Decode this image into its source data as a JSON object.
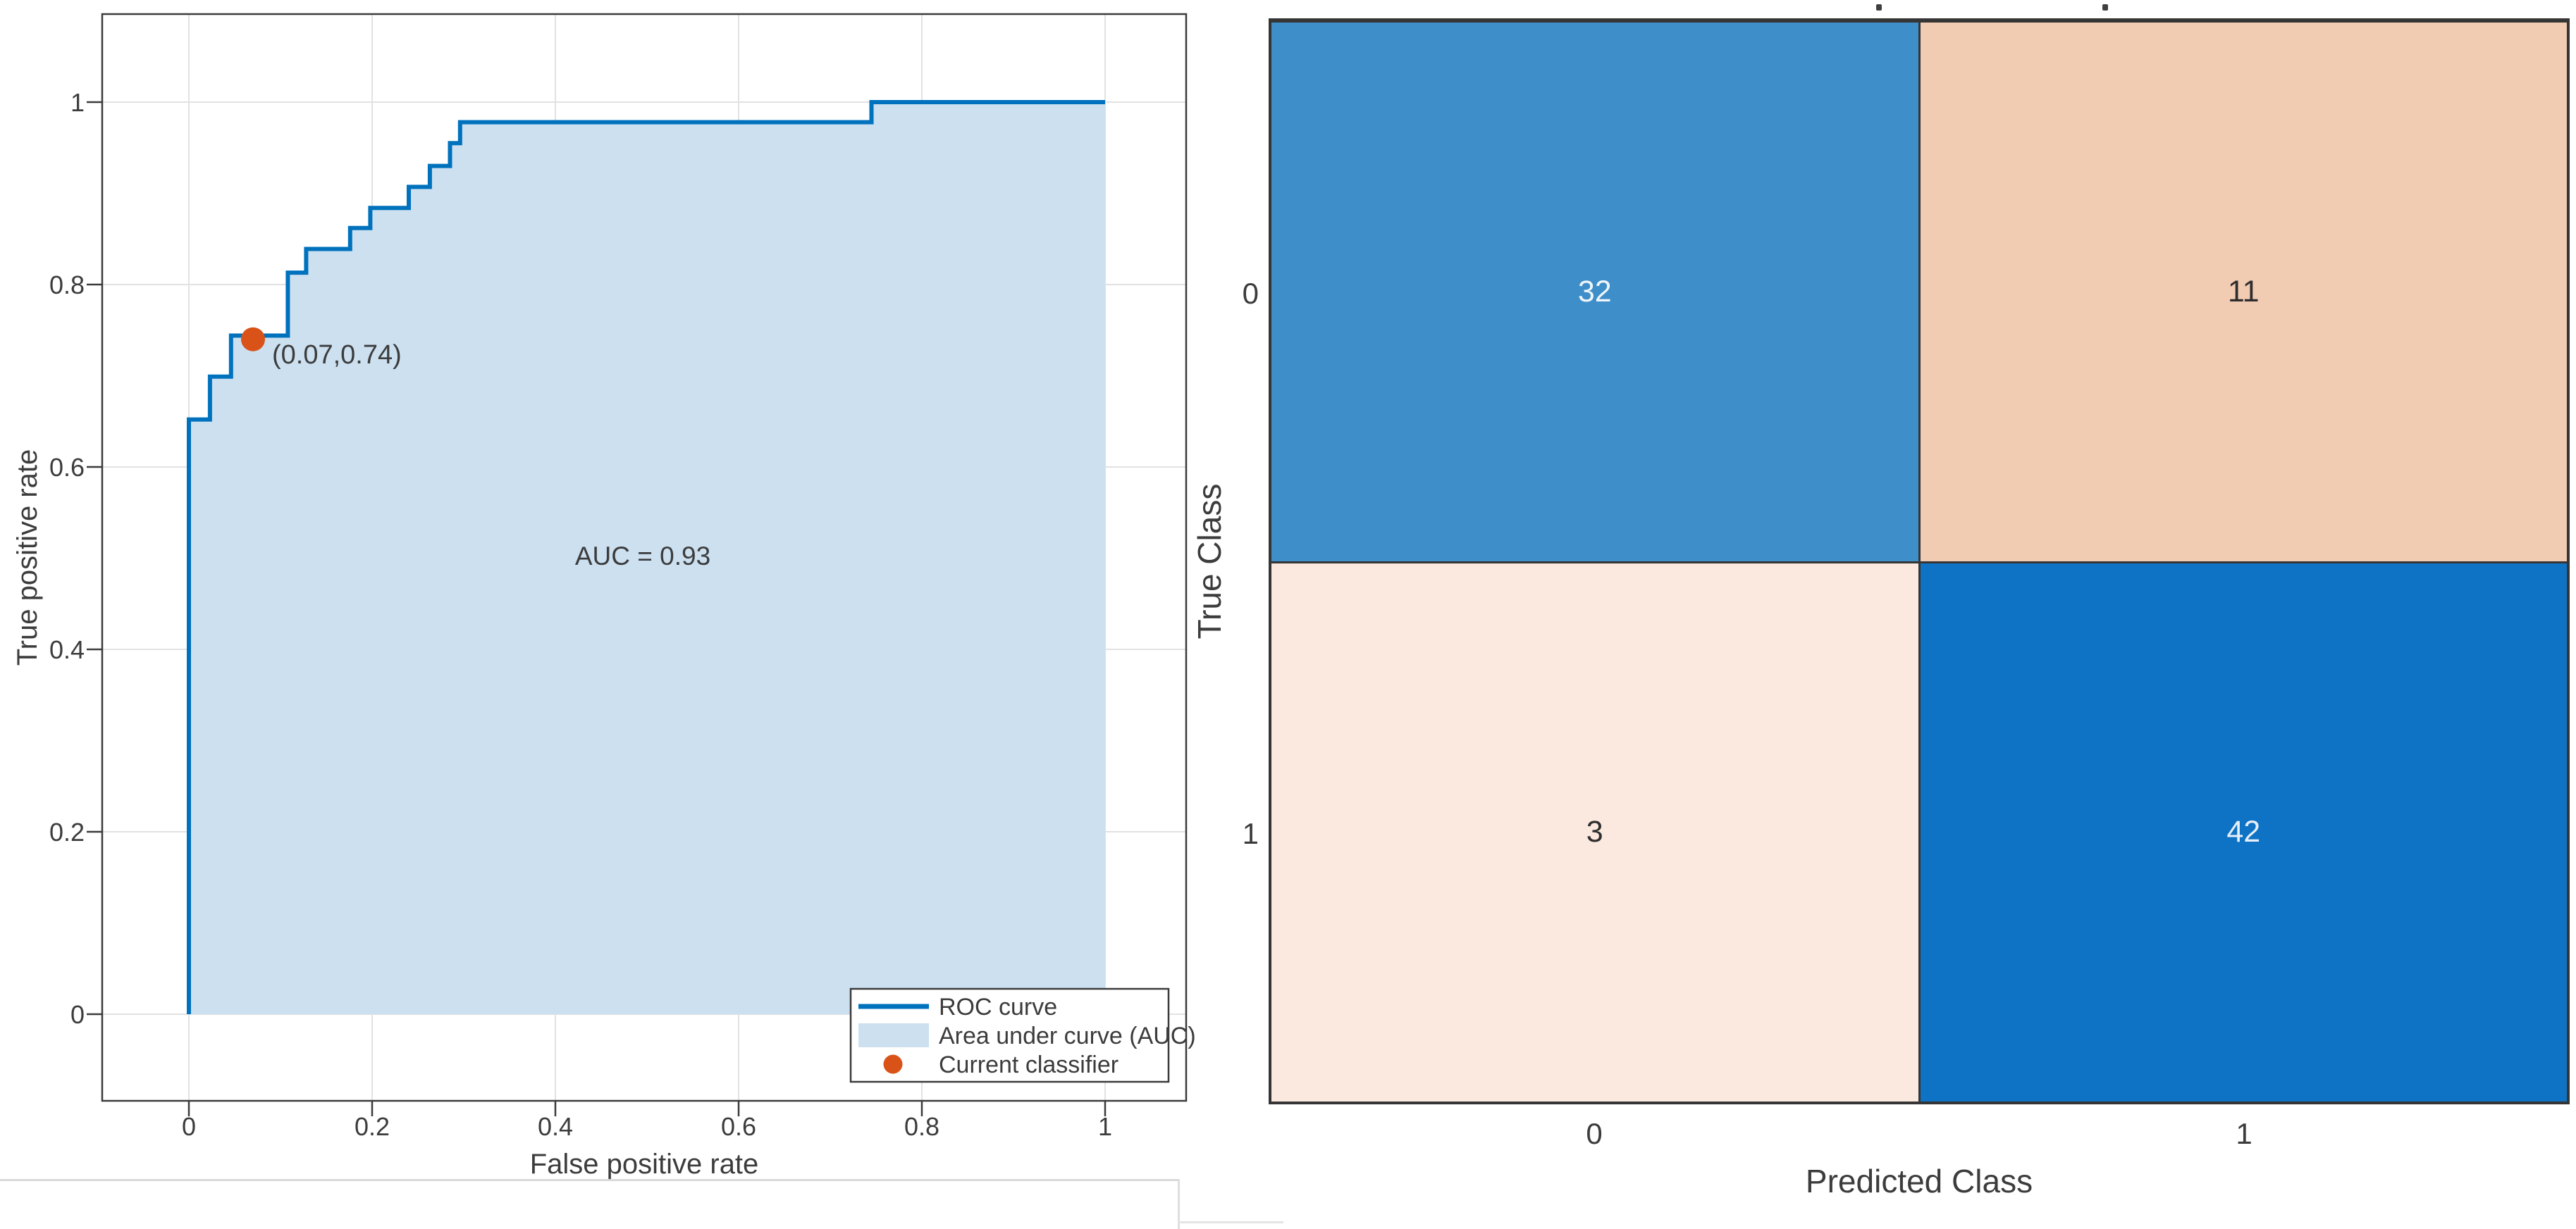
{
  "figure": {
    "description": "ROC curve plot and confusion matrix chart side by side"
  },
  "chart_data": [
    {
      "type": "area",
      "title": "",
      "xlabel": "False positive rate",
      "ylabel": "True positive rate",
      "xlim": [
        -0.095,
        1.088
      ],
      "ylim": [
        -0.096,
        1.097
      ],
      "xticks": [
        0,
        0.2,
        0.4,
        0.6,
        0.8,
        1
      ],
      "yticks": [
        0,
        0.2,
        0.4,
        0.6,
        0.8,
        1
      ],
      "grid": true,
      "series": [
        {
          "name": "ROC curve",
          "points": [
            [
              0,
              0
            ],
            [
              0,
              0.652
            ],
            [
              0.023,
              0.652
            ],
            [
              0.023,
              0.699
            ],
            [
              0.046,
              0.699
            ],
            [
              0.046,
              0.744
            ],
            [
              0.108,
              0.744
            ],
            [
              0.108,
              0.813
            ],
            [
              0.128,
              0.813
            ],
            [
              0.128,
              0.839
            ],
            [
              0.176,
              0.839
            ],
            [
              0.176,
              0.862
            ],
            [
              0.198,
              0.862
            ],
            [
              0.198,
              0.884
            ],
            [
              0.24,
              0.884
            ],
            [
              0.24,
              0.907
            ],
            [
              0.263,
              0.907
            ],
            [
              0.263,
              0.93
            ],
            [
              0.285,
              0.93
            ],
            [
              0.285,
              0.955
            ],
            [
              0.296,
              0.955
            ],
            [
              0.296,
              0.978
            ],
            [
              0.745,
              0.978
            ],
            [
              0.745,
              1
            ],
            [
              1,
              1
            ]
          ]
        }
      ],
      "auc": 0.93,
      "auc_label": "AUC = 0.93",
      "classifier_point": {
        "x": 0.07,
        "y": 0.74,
        "label": "(0.07,0.74)"
      },
      "legend": {
        "position": "southeast",
        "entries": [
          {
            "label": "ROC curve",
            "swatch": "line",
            "color": "#0072bd"
          },
          {
            "label": "Area under curve (AUC)",
            "swatch": "patch",
            "color": "#cce0f0"
          },
          {
            "label": "Current classifier",
            "swatch": "dot",
            "color": "#d95319"
          }
        ]
      },
      "colors": {
        "line": "#0072bd",
        "fill": "#cce0f0",
        "marker": "#d95319",
        "grid": "#e2e2e2",
        "axis": "#3b3b3b"
      }
    },
    {
      "type": "heatmap",
      "title": "",
      "xlabel": "Predicted Class",
      "ylabel": "True Class",
      "row_labels": [
        "0",
        "1"
      ],
      "col_labels": [
        "0",
        "1"
      ],
      "values": [
        [
          32,
          11
        ],
        [
          3,
          42
        ]
      ],
      "cell_styles": [
        [
          {
            "bg": "#3d8ec9",
            "fg": "#eff5fa"
          },
          {
            "bg": "#f2cbb3",
            "fg": "#2e2e2e"
          }
        ],
        [
          {
            "bg": "#fbe9df",
            "fg": "#2e2e2e"
          },
          {
            "bg": "#0e73c4",
            "fg": "#e8eff8"
          }
        ]
      ]
    }
  ]
}
